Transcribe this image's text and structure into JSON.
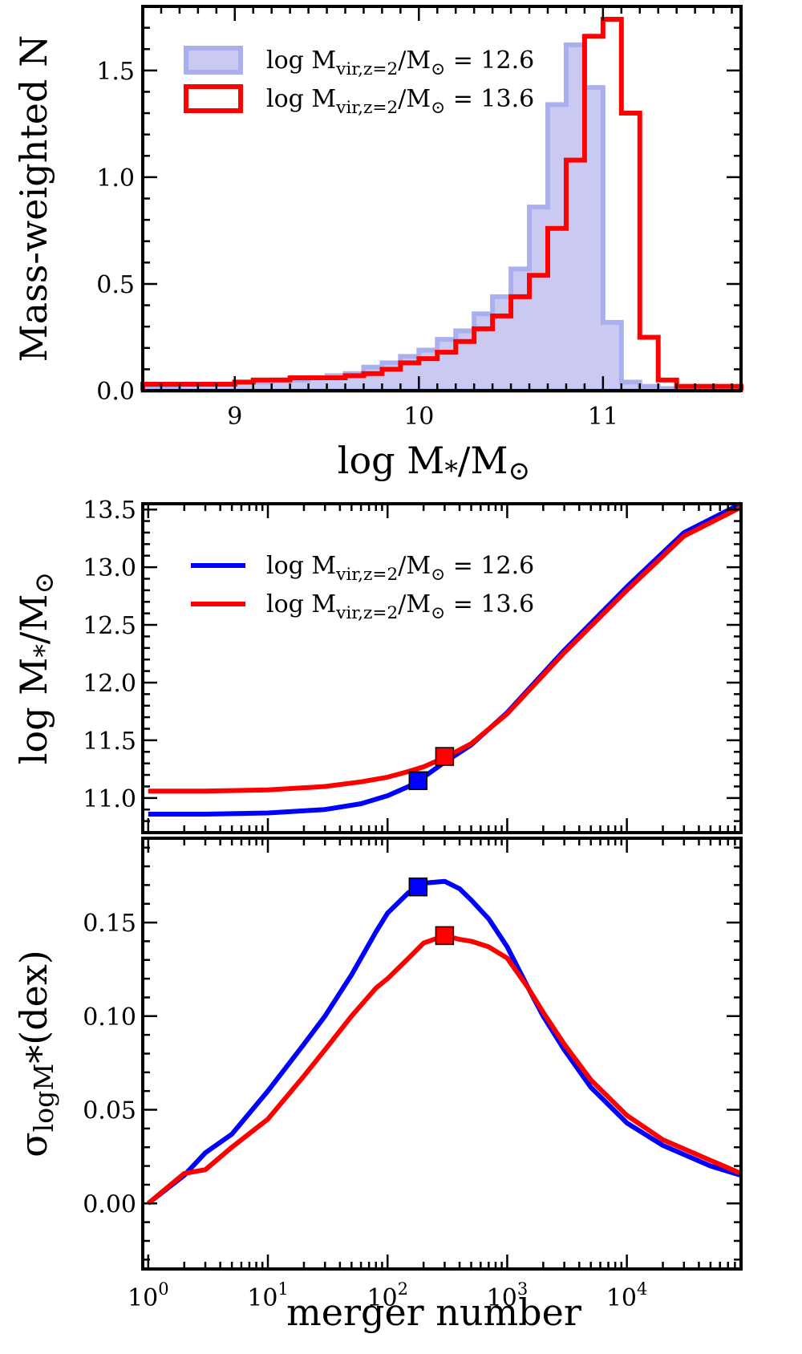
{
  "chart_data": [
    {
      "type": "histogram",
      "panel": "top",
      "xlabel": "log M*/M⊙",
      "ylabel": "Mass-weighted N",
      "xlim": [
        8.5,
        11.75
      ],
      "ylim": [
        0.0,
        1.8
      ],
      "xticks": [
        "9",
        "10",
        "11"
      ],
      "yticks": [
        "0.0",
        "0.5",
        "1.0",
        "1.5"
      ],
      "legend_position": "top-left",
      "bin_edges": [
        8.5,
        8.6,
        8.7,
        8.8,
        8.9,
        9.0,
        9.1,
        9.2,
        9.3,
        9.4,
        9.5,
        9.6,
        9.7,
        9.8,
        9.9,
        10.0,
        10.1,
        10.2,
        10.3,
        10.4,
        10.5,
        10.6,
        10.7,
        10.8,
        10.9,
        11.0,
        11.1,
        11.2,
        11.3,
        11.4,
        11.5,
        11.75
      ],
      "series": [
        {
          "name": "logMvir,z=2/M⊙ = 12.6",
          "style": "filled",
          "color": "#c9c9f2",
          "edge": "#aab0ee",
          "values": [
            0.02,
            0.02,
            0.03,
            0.03,
            0.03,
            0.04,
            0.04,
            0.05,
            0.05,
            0.06,
            0.07,
            0.08,
            0.11,
            0.13,
            0.16,
            0.19,
            0.24,
            0.28,
            0.36,
            0.44,
            0.57,
            0.86,
            1.34,
            1.62,
            1.42,
            0.32,
            0.04,
            0.02,
            0.01,
            0.0,
            0.0
          ]
        },
        {
          "name": "logMvir,z=2/M⊙ = 13.6",
          "style": "step",
          "color": "#ff0000",
          "values": [
            0.03,
            0.03,
            0.03,
            0.03,
            0.03,
            0.04,
            0.05,
            0.05,
            0.06,
            0.06,
            0.06,
            0.07,
            0.08,
            0.1,
            0.13,
            0.15,
            0.18,
            0.23,
            0.29,
            0.35,
            0.44,
            0.54,
            0.76,
            1.08,
            1.66,
            1.74,
            1.3,
            0.25,
            0.05,
            0.02,
            0.02
          ]
        }
      ]
    },
    {
      "type": "line",
      "panel": "middle",
      "xscale": "log",
      "xlim": [
        0.9,
        90000
      ],
      "ylim": [
        10.7,
        13.55
      ],
      "ylabel": "log M*/M⊙",
      "yticks": [
        "11.0",
        "11.5",
        "12.0",
        "12.5",
        "13.0",
        "13.5"
      ],
      "legend_position": "top-left",
      "series": [
        {
          "name": "logMvir,z=2/M⊙ = 12.6",
          "color": "#0000ff",
          "x": [
            1,
            3,
            10,
            30,
            60,
            100,
            150,
            200,
            300,
            500,
            1000,
            3000,
            10000,
            30000,
            90000
          ],
          "y": [
            10.86,
            10.86,
            10.87,
            10.9,
            10.95,
            11.02,
            11.1,
            11.18,
            11.31,
            11.46,
            11.74,
            12.28,
            12.83,
            13.3,
            13.55
          ],
          "marker": {
            "x": 180,
            "y": 11.15
          }
        },
        {
          "name": "logMvir,z=2/M⊙ = 13.6",
          "color": "#ff0000",
          "x": [
            1,
            3,
            10,
            30,
            60,
            100,
            150,
            200,
            300,
            500,
            1000,
            3000,
            10000,
            30000,
            90000
          ],
          "y": [
            11.06,
            11.06,
            11.07,
            11.1,
            11.14,
            11.18,
            11.23,
            11.27,
            11.35,
            11.47,
            11.73,
            12.26,
            12.8,
            13.27,
            13.52
          ],
          "marker": {
            "x": 300,
            "y": 11.36
          }
        }
      ]
    },
    {
      "type": "line",
      "panel": "bottom",
      "xscale": "log",
      "xlim": [
        0.9,
        90000
      ],
      "ylim": [
        -0.035,
        0.195
      ],
      "xlabel": "merger number",
      "ylabel": "σlogM*(dex)",
      "xticks": [
        "10^0",
        "10^1",
        "10^2",
        "10^3",
        "10^4"
      ],
      "yticks": [
        "0.00",
        "0.05",
        "0.10",
        "0.15"
      ],
      "series": [
        {
          "name": "logMvir,z=2/M⊙ = 12.6",
          "color": "#0000ff",
          "x": [
            1,
            2,
            3,
            5,
            10,
            20,
            30,
            50,
            80,
            100,
            150,
            200,
            300,
            400,
            500,
            700,
            1000,
            1500,
            2000,
            3000,
            5000,
            10000,
            20000,
            50000,
            90000
          ],
          "y": [
            0.0,
            0.015,
            0.027,
            0.037,
            0.06,
            0.085,
            0.1,
            0.122,
            0.145,
            0.155,
            0.166,
            0.171,
            0.172,
            0.168,
            0.162,
            0.152,
            0.137,
            0.115,
            0.1,
            0.082,
            0.062,
            0.043,
            0.031,
            0.02,
            0.015
          ],
          "marker": {
            "x": 180,
            "y": 0.169
          }
        },
        {
          "name": "logMvir,z=2/M⊙ = 13.6",
          "color": "#ff0000",
          "x": [
            1,
            2,
            3,
            5,
            10,
            20,
            30,
            50,
            80,
            100,
            150,
            200,
            300,
            400,
            500,
            700,
            1000,
            1500,
            2000,
            3000,
            5000,
            10000,
            20000,
            50000,
            90000
          ],
          "y": [
            0.0,
            0.016,
            0.018,
            0.03,
            0.045,
            0.068,
            0.082,
            0.1,
            0.115,
            0.12,
            0.131,
            0.139,
            0.143,
            0.141,
            0.14,
            0.137,
            0.131,
            0.115,
            0.102,
            0.085,
            0.066,
            0.047,
            0.034,
            0.023,
            0.016
          ],
          "marker": {
            "x": 300,
            "y": 0.143
          }
        }
      ]
    }
  ]
}
